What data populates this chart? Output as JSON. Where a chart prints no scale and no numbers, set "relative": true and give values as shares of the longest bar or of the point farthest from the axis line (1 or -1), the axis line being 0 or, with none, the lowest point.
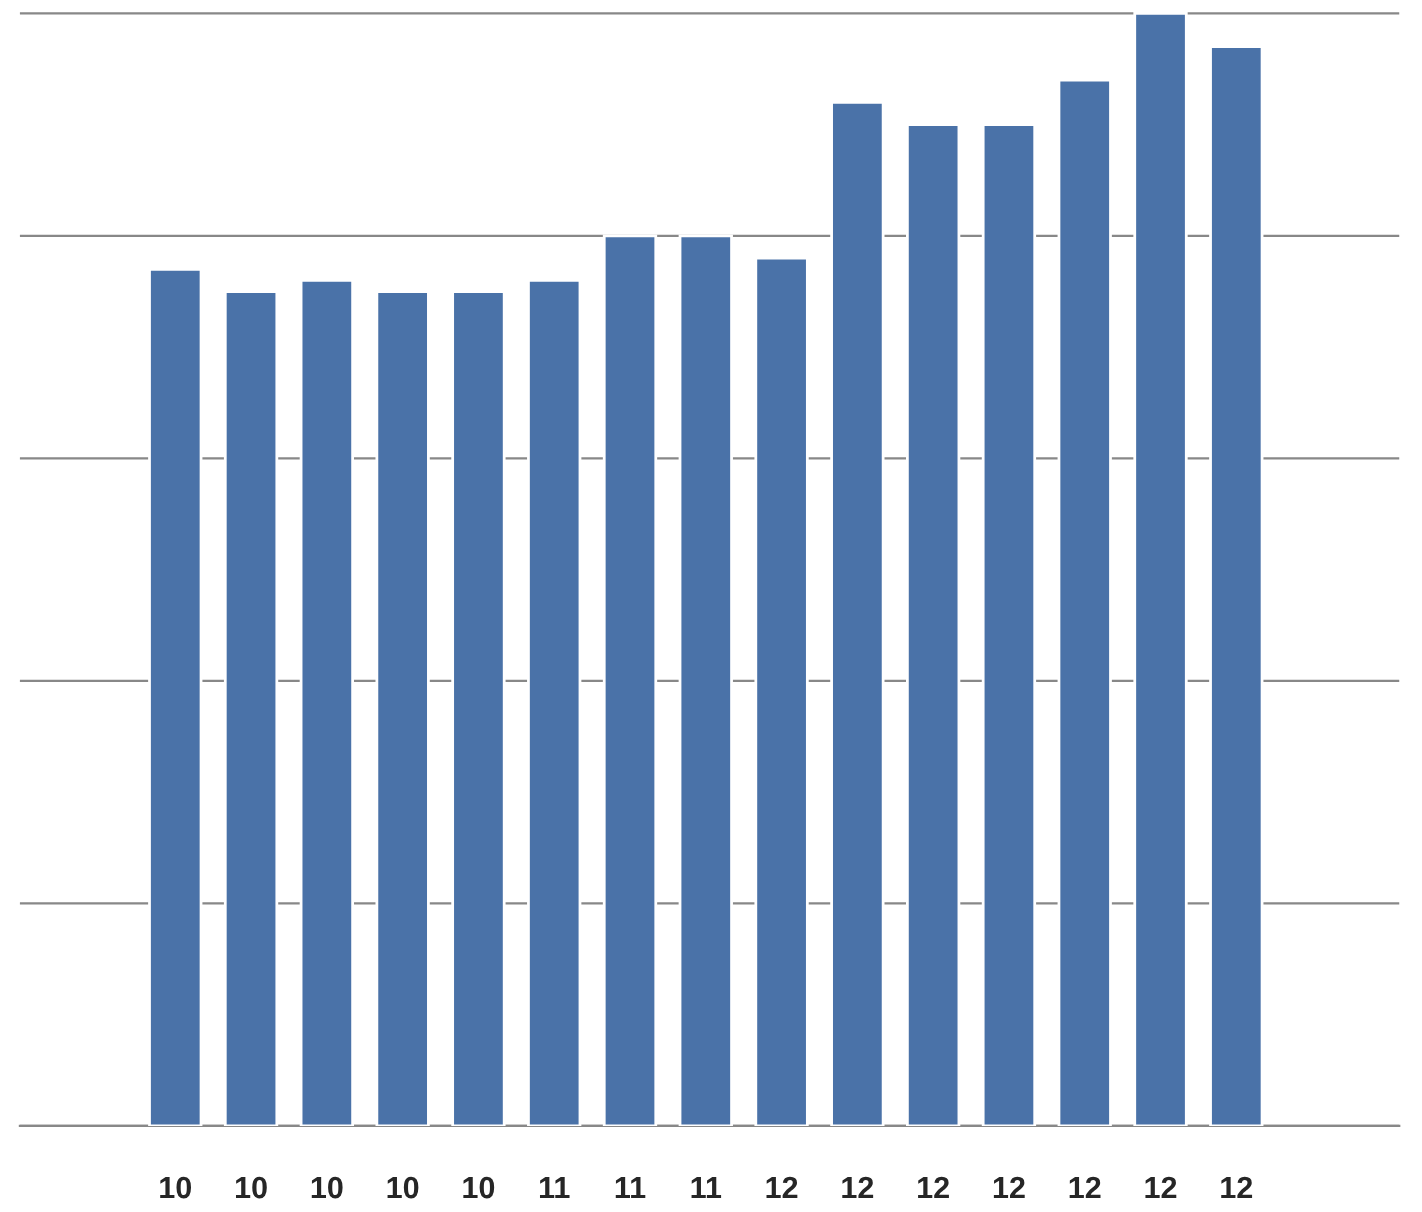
{
  "chart_data": {
    "type": "bar",
    "relative": true,
    "categories": [
      "10",
      "10",
      "10",
      "10",
      "10",
      "11",
      "11",
      "11",
      "12",
      "12",
      "12",
      "12",
      "12",
      "12",
      "12"
    ],
    "values": [
      0.77,
      0.75,
      0.76,
      0.75,
      0.75,
      0.76,
      0.8,
      0.8,
      0.78,
      0.92,
      0.9,
      0.9,
      0.94,
      1,
      0.97
    ],
    "color": "#4a72a8",
    "grid": "y"
  }
}
